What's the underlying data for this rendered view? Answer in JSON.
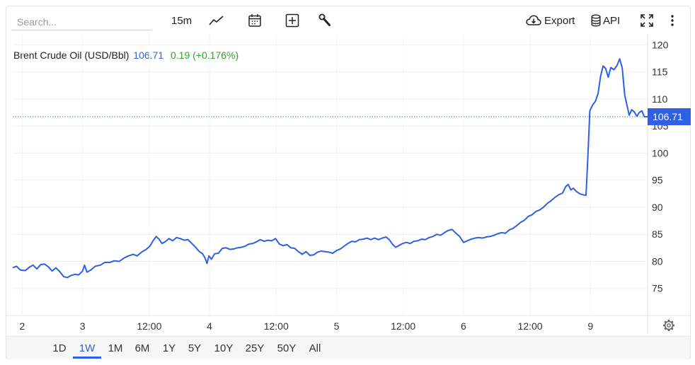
{
  "toolbar": {
    "search_placeholder": "Search...",
    "interval": "15m",
    "export_label": "Export",
    "api_label": "API"
  },
  "legend": {
    "name": "Brent Crude Oil (USD/Bbl)",
    "price": "106.71",
    "change": "0.19 (+0.176%)"
  },
  "ranges": [
    "1D",
    "1W",
    "1M",
    "6M",
    "1Y",
    "5Y",
    "10Y",
    "25Y",
    "50Y",
    "All"
  ],
  "active_range": "1W",
  "colors": {
    "line": "#2f5fe3",
    "change_up": "#2fa12f",
    "price_tag_bg": "#2f5fe3"
  },
  "chart_data": {
    "type": "line",
    "title": "Brent Crude Oil (USD/Bbl)",
    "xlabel": "",
    "ylabel": "",
    "ylim": [
      70,
      122
    ],
    "yticks": [
      75,
      80,
      85,
      90,
      95,
      100,
      105,
      110,
      115,
      120
    ],
    "xlim": [
      0,
      100
    ],
    "xticks": [
      {
        "x": 1.5,
        "label": "2"
      },
      {
        "x": 11,
        "label": "3"
      },
      {
        "x": 21.5,
        "label": "12:00"
      },
      {
        "x": 31,
        "label": "4"
      },
      {
        "x": 41.5,
        "label": "12:00"
      },
      {
        "x": 51,
        "label": "5"
      },
      {
        "x": 61.5,
        "label": "12:00"
      },
      {
        "x": 71,
        "label": "6"
      },
      {
        "x": 81.5,
        "label": "12:00"
      },
      {
        "x": 91,
        "label": "9"
      }
    ],
    "last_price": 106.71,
    "last_price_label": "106.71",
    "grid": true,
    "series": [
      {
        "values": [
          [
            0,
            78.8
          ],
          [
            0.6,
            79.1
          ],
          [
            1.2,
            78.4
          ],
          [
            2,
            78.3
          ],
          [
            2.6,
            78.9
          ],
          [
            3.2,
            79.3
          ],
          [
            3.8,
            78.6
          ],
          [
            4.4,
            79.4
          ],
          [
            5,
            79.5
          ],
          [
            5.6,
            79.0
          ],
          [
            6.2,
            78.2
          ],
          [
            6.8,
            78.8
          ],
          [
            7.4,
            78.1
          ],
          [
            8,
            77.2
          ],
          [
            8.6,
            77.0
          ],
          [
            9.2,
            77.4
          ],
          [
            9.8,
            77.6
          ],
          [
            10.4,
            77.5
          ],
          [
            11,
            78.2
          ],
          [
            11.3,
            79.3
          ],
          [
            11.7,
            78.0
          ],
          [
            12.3,
            78.4
          ],
          [
            13,
            79.1
          ],
          [
            13.8,
            79.3
          ],
          [
            14.5,
            79.8
          ],
          [
            15.3,
            79.8
          ],
          [
            16,
            80.1
          ],
          [
            16.8,
            80.0
          ],
          [
            17.5,
            80.6
          ],
          [
            18.2,
            81.0
          ],
          [
            19,
            81.3
          ],
          [
            19.6,
            81.0
          ],
          [
            20.3,
            81.7
          ],
          [
            21,
            82.2
          ],
          [
            21.6,
            82.8
          ],
          [
            22.1,
            83.8
          ],
          [
            22.6,
            84.6
          ],
          [
            23.1,
            84.0
          ],
          [
            23.5,
            83.3
          ],
          [
            24,
            83.6
          ],
          [
            24.6,
            84.2
          ],
          [
            25.2,
            83.8
          ],
          [
            25.8,
            84.4
          ],
          [
            26.4,
            84.2
          ],
          [
            27,
            83.9
          ],
          [
            27.6,
            84.0
          ],
          [
            28.2,
            83.3
          ],
          [
            28.8,
            82.6
          ],
          [
            29.4,
            81.8
          ],
          [
            29.9,
            81.4
          ],
          [
            30.3,
            80.6
          ],
          [
            30.6,
            79.6
          ],
          [
            30.9,
            81.0
          ],
          [
            31.3,
            80.4
          ],
          [
            31.8,
            81.4
          ],
          [
            32.4,
            81.5
          ],
          [
            33,
            82.4
          ],
          [
            33.6,
            82.5
          ],
          [
            34.2,
            82.2
          ],
          [
            34.8,
            82.3
          ],
          [
            35.4,
            82.5
          ],
          [
            36,
            82.6
          ],
          [
            36.6,
            82.8
          ],
          [
            37.2,
            83.2
          ],
          [
            37.8,
            83.3
          ],
          [
            38.4,
            83.6
          ],
          [
            39,
            84.0
          ],
          [
            39.6,
            83.7
          ],
          [
            40.2,
            83.9
          ],
          [
            40.8,
            83.8
          ],
          [
            41.4,
            84.2
          ],
          [
            42,
            83.2
          ],
          [
            42.6,
            82.9
          ],
          [
            43.2,
            83.1
          ],
          [
            43.8,
            82.5
          ],
          [
            44.4,
            82.4
          ],
          [
            45,
            81.8
          ],
          [
            45.6,
            81.3
          ],
          [
            46.2,
            81.8
          ],
          [
            46.8,
            81.1
          ],
          [
            47.4,
            81.2
          ],
          [
            48,
            81.7
          ],
          [
            48.6,
            81.9
          ],
          [
            49.2,
            81.8
          ],
          [
            49.8,
            81.7
          ],
          [
            50.4,
            81.5
          ],
          [
            51,
            82.0
          ],
          [
            51.6,
            82.3
          ],
          [
            52.2,
            82.8
          ],
          [
            52.8,
            83.3
          ],
          [
            53.4,
            83.7
          ],
          [
            54,
            83.6
          ],
          [
            54.6,
            84.0
          ],
          [
            55.2,
            84.1
          ],
          [
            55.8,
            84.3
          ],
          [
            56.4,
            84.0
          ],
          [
            57,
            84.3
          ],
          [
            57.6,
            84.0
          ],
          [
            58.2,
            84.3
          ],
          [
            58.8,
            84.5
          ],
          [
            59.3,
            84.0
          ],
          [
            59.8,
            83.2
          ],
          [
            60.3,
            82.6
          ],
          [
            60.8,
            82.9
          ],
          [
            61.4,
            83.3
          ],
          [
            62,
            83.5
          ],
          [
            62.6,
            83.3
          ],
          [
            63.2,
            83.7
          ],
          [
            63.8,
            83.8
          ],
          [
            64.4,
            84.1
          ],
          [
            65,
            84.0
          ],
          [
            65.6,
            84.4
          ],
          [
            66.2,
            84.6
          ],
          [
            66.8,
            85.0
          ],
          [
            67.4,
            84.8
          ],
          [
            68,
            85.3
          ],
          [
            68.6,
            85.7
          ],
          [
            69.2,
            85.9
          ],
          [
            69.8,
            85.2
          ],
          [
            70.4,
            84.6
          ],
          [
            71,
            83.5
          ],
          [
            71.6,
            83.8
          ],
          [
            72.2,
            84.1
          ],
          [
            72.8,
            84.3
          ],
          [
            73.4,
            84.4
          ],
          [
            74,
            84.3
          ],
          [
            74.6,
            84.5
          ],
          [
            75.2,
            84.6
          ],
          [
            75.8,
            84.8
          ],
          [
            76.4,
            85.1
          ],
          [
            77,
            85.3
          ],
          [
            77.6,
            85.2
          ],
          [
            78.2,
            85.8
          ],
          [
            78.8,
            86.1
          ],
          [
            79.4,
            86.6
          ],
          [
            80,
            87.2
          ],
          [
            80.6,
            87.6
          ],
          [
            81.2,
            88.3
          ],
          [
            81.8,
            88.6
          ],
          [
            82.4,
            89.2
          ],
          [
            83,
            89.5
          ],
          [
            83.6,
            90.0
          ],
          [
            84.2,
            90.7
          ],
          [
            84.8,
            91.2
          ],
          [
            85.4,
            91.8
          ],
          [
            86,
            92.3
          ],
          [
            86.6,
            92.6
          ],
          [
            87.1,
            93.8
          ],
          [
            87.5,
            94.2
          ],
          [
            87.9,
            93.2
          ],
          [
            88.3,
            93.5
          ],
          [
            88.8,
            92.9
          ],
          [
            89.3,
            92.5
          ],
          [
            89.8,
            92.3
          ],
          [
            90.3,
            92.2
          ],
          [
            90.6,
            99.5
          ],
          [
            90.9,
            107.8
          ],
          [
            91.3,
            108.8
          ],
          [
            91.8,
            109.6
          ],
          [
            92.2,
            111.0
          ],
          [
            92.6,
            114.2
          ],
          [
            93.0,
            116.1
          ],
          [
            93.4,
            115.6
          ],
          [
            93.8,
            114.0
          ],
          [
            94.2,
            115.8
          ],
          [
            94.7,
            115.4
          ],
          [
            95.2,
            116.2
          ],
          [
            95.6,
            117.4
          ],
          [
            96.0,
            115.8
          ],
          [
            96.4,
            110.7
          ],
          [
            96.8,
            108.6
          ],
          [
            97.1,
            107.0
          ],
          [
            97.5,
            108.0
          ],
          [
            97.9,
            107.6
          ],
          [
            98.3,
            106.8
          ],
          [
            98.7,
            107.5
          ],
          [
            99.1,
            107.8
          ],
          [
            99.5,
            106.7
          ],
          [
            100,
            106.71
          ]
        ]
      }
    ]
  }
}
